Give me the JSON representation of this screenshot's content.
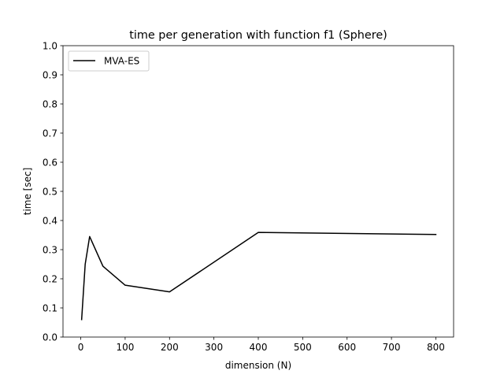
{
  "chart_data": {
    "type": "line",
    "title": "time per generation with function f1 (Sphere)",
    "xlabel": "dimension (N)",
    "ylabel": "time [sec]",
    "xlim": [
      -40,
      840
    ],
    "ylim": [
      0.0,
      1.0
    ],
    "xticks": [
      0,
      100,
      200,
      300,
      400,
      500,
      600,
      700,
      800
    ],
    "xtick_labels": [
      "0",
      "100",
      "200",
      "300",
      "400",
      "500",
      "600",
      "700",
      "800"
    ],
    "yticks": [
      0.0,
      0.1,
      0.2,
      0.3,
      0.4,
      0.5,
      0.6,
      0.7,
      0.8,
      0.9,
      1.0
    ],
    "ytick_labels": [
      "0.0",
      "0.1",
      "0.2",
      "0.3",
      "0.4",
      "0.5",
      "0.6",
      "0.7",
      "0.8",
      "0.9",
      "1.0"
    ],
    "grid": false,
    "legend_position": "upper-left",
    "series": [
      {
        "name": "MVA-ES",
        "color": "#000000",
        "x": [
          2,
          10,
          20,
          50,
          100,
          200,
          400,
          800
        ],
        "y": [
          0.06,
          0.25,
          0.345,
          0.243,
          0.178,
          0.155,
          0.359,
          0.352
        ]
      }
    ]
  }
}
